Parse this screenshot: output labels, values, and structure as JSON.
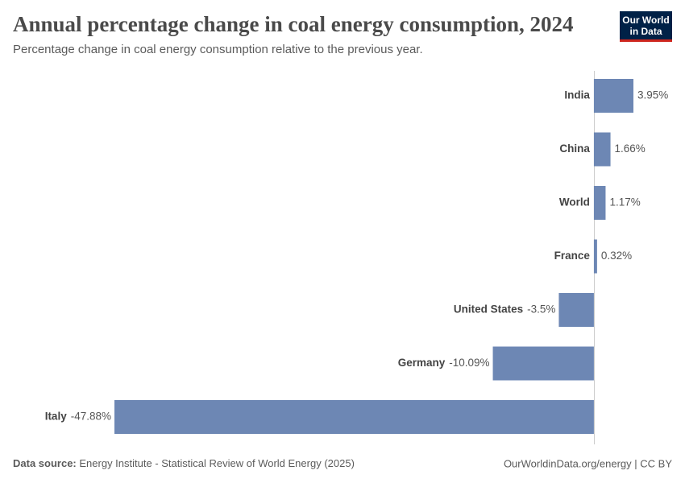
{
  "chart_data": {
    "type": "bar",
    "orientation": "horizontal",
    "title": "Annual percentage change in coal energy consumption, 2024",
    "subtitle": "Percentage change in coal energy consumption relative to the previous year.",
    "categories": [
      "India",
      "China",
      "World",
      "France",
      "United States",
      "Germany",
      "Italy"
    ],
    "values": [
      3.95,
      1.66,
      1.17,
      0.32,
      -3.5,
      -10.09,
      -47.88
    ],
    "value_labels": [
      "3.95%",
      "1.66%",
      "1.17%",
      "0.32%",
      "-3.5%",
      "-10.09%",
      "-47.88%"
    ],
    "color": "#6d87b4"
  },
  "footer": {
    "source_label": "Data source:",
    "source": "Energy Institute - Statistical Review of World Energy (2025)",
    "credit": "OurWorldinData.org/energy | CC BY"
  },
  "logo": {
    "line1": "Our World",
    "line2": "in Data"
  }
}
